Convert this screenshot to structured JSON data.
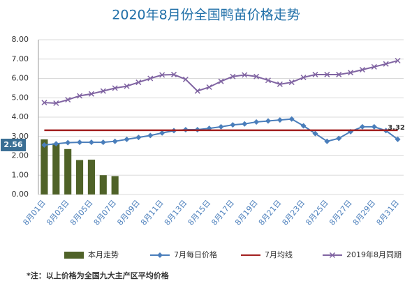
{
  "chart_data": {
    "type": "combo",
    "title": "2020年8月份全国鸭苗价格走势",
    "footnote": "*注：以上价格为全国九大主产区平均价格",
    "categories": [
      "8月01日",
      null,
      "8月03日",
      null,
      "8月05日",
      null,
      "8月07日",
      null,
      "8月09日",
      null,
      "8月11日",
      null,
      "8月13日",
      null,
      "8月15日",
      null,
      "8月17日",
      null,
      "8月19日",
      null,
      "8月21日",
      null,
      "8月23日",
      null,
      "8月25日",
      null,
      "8月27日",
      null,
      "8月29日",
      null,
      "8月31日"
    ],
    "ylim": [
      0,
      8
    ],
    "yticks": [
      {
        "value": 0,
        "label": "0.00"
      },
      {
        "value": 1,
        "label": "1.00"
      },
      {
        "value": 2,
        "label": "2.00"
      },
      {
        "value": 3,
        "label": "3.00"
      },
      {
        "value": 4,
        "label": "4.00"
      },
      {
        "value": 5,
        "label": "5.00"
      },
      {
        "value": 6,
        "label": "6.00"
      },
      {
        "value": 7,
        "label": "7.00"
      },
      {
        "value": 8,
        "label": "8.00"
      }
    ],
    "grid": true,
    "legend": "bottom",
    "series": [
      {
        "name": "本月走势",
        "kind": "bar",
        "color": "#4f6228",
        "values": [
          2.85,
          2.65,
          2.35,
          1.78,
          1.8,
          1.0,
          0.95,
          null,
          null,
          null,
          null,
          null,
          null,
          null,
          null,
          null,
          null,
          null,
          null,
          null,
          null,
          null,
          null,
          null,
          null,
          null,
          null,
          null,
          null,
          null,
          null
        ]
      },
      {
        "name": "7月每日价格",
        "kind": "line",
        "marker": "diamond",
        "color": "#4a7ebb",
        "values": [
          2.56,
          2.62,
          2.68,
          2.7,
          2.7,
          2.7,
          2.75,
          2.85,
          2.95,
          3.05,
          3.18,
          3.3,
          3.35,
          3.35,
          3.42,
          3.5,
          3.6,
          3.65,
          3.75,
          3.8,
          3.85,
          3.9,
          3.55,
          3.15,
          2.75,
          2.9,
          3.25,
          3.5,
          3.5,
          3.3,
          2.85
        ]
      },
      {
        "name": "7月均线",
        "kind": "line",
        "marker": "none",
        "color": "#a32020",
        "values": [
          3.32,
          3.32,
          3.32,
          3.32,
          3.32,
          3.32,
          3.32,
          3.32,
          3.32,
          3.32,
          3.32,
          3.32,
          3.32,
          3.32,
          3.32,
          3.32,
          3.32,
          3.32,
          3.32,
          3.32,
          3.32,
          3.32,
          3.32,
          3.32,
          3.32,
          3.32,
          3.32,
          3.32,
          3.32,
          3.32,
          3.32
        ]
      },
      {
        "name": "2019年8月同期",
        "kind": "line",
        "marker": "x",
        "color": "#8064a2",
        "values": [
          4.75,
          4.72,
          4.9,
          5.1,
          5.2,
          5.35,
          5.5,
          5.6,
          5.8,
          6.0,
          6.18,
          6.2,
          5.95,
          5.35,
          5.55,
          5.85,
          6.1,
          6.18,
          6.1,
          5.9,
          5.7,
          5.8,
          6.05,
          6.2,
          6.2,
          6.2,
          6.3,
          6.45,
          6.6,
          6.75,
          6.92
        ]
      }
    ]
  }
}
